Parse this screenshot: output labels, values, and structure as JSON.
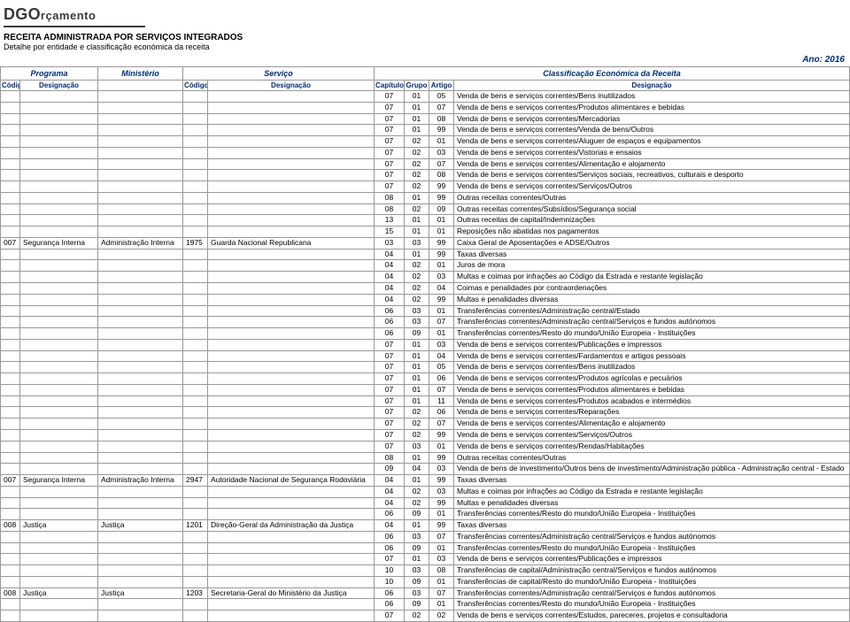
{
  "logo": {
    "prefix": "DGO",
    "suffix": "rçamento"
  },
  "header": {
    "title": "RECEITA ADMINISTRADA POR SERVIÇOS INTEGRADOS",
    "subtitle": "Detalhe por entidade e classificação económica da receita",
    "year_label": "Ano: 2016"
  },
  "group_headers": {
    "programa": "Programa",
    "ministerio": "Ministério",
    "servico": "Serviço",
    "classificacao": "Classificação Económica da Receita"
  },
  "col_headers": {
    "codigo": "Código",
    "desg": "Designação",
    "capitulo": "Capítulo",
    "grupo": "Grupo",
    "artigo": "Artigo"
  },
  "rows": [
    {
      "pc": "",
      "pd": "",
      "md": "",
      "sc": "",
      "sd": "",
      "cap": "07",
      "grp": "01",
      "art": "05",
      "d": "Venda de bens e serviços correntes/Bens inutilizados"
    },
    {
      "pc": "",
      "pd": "",
      "md": "",
      "sc": "",
      "sd": "",
      "cap": "07",
      "grp": "01",
      "art": "07",
      "d": "Venda de bens e serviços correntes/Produtos alimentares e bebidas"
    },
    {
      "pc": "",
      "pd": "",
      "md": "",
      "sc": "",
      "sd": "",
      "cap": "07",
      "grp": "01",
      "art": "08",
      "d": "Venda de bens e serviços correntes/Mercadorias"
    },
    {
      "pc": "",
      "pd": "",
      "md": "",
      "sc": "",
      "sd": "",
      "cap": "07",
      "grp": "01",
      "art": "99",
      "d": "Venda de bens e serviços correntes/Venda de bens/Outros"
    },
    {
      "pc": "",
      "pd": "",
      "md": "",
      "sc": "",
      "sd": "",
      "cap": "07",
      "grp": "02",
      "art": "01",
      "d": "Venda de bens e serviços correntes/Aluguer de espaços e equipamentos"
    },
    {
      "pc": "",
      "pd": "",
      "md": "",
      "sc": "",
      "sd": "",
      "cap": "07",
      "grp": "02",
      "art": "03",
      "d": "Venda de bens e serviços correntes/Vistorias e ensaios"
    },
    {
      "pc": "",
      "pd": "",
      "md": "",
      "sc": "",
      "sd": "",
      "cap": "07",
      "grp": "02",
      "art": "07",
      "d": "Venda de bens e serviços correntes/Alimentação e alojamento"
    },
    {
      "pc": "",
      "pd": "",
      "md": "",
      "sc": "",
      "sd": "",
      "cap": "07",
      "grp": "02",
      "art": "08",
      "d": "Venda de bens e serviços correntes/Serviços sociais, recreativos, culturais e desporto"
    },
    {
      "pc": "",
      "pd": "",
      "md": "",
      "sc": "",
      "sd": "",
      "cap": "07",
      "grp": "02",
      "art": "99",
      "d": "Venda de bens e serviços correntes/Serviços/Outros"
    },
    {
      "pc": "",
      "pd": "",
      "md": "",
      "sc": "",
      "sd": "",
      "cap": "08",
      "grp": "01",
      "art": "99",
      "d": "Outras receitas correntes/Outras"
    },
    {
      "pc": "",
      "pd": "",
      "md": "",
      "sc": "",
      "sd": "",
      "cap": "08",
      "grp": "02",
      "art": "09",
      "d": "Outras receitas correntes/Subsídios/Segurança social"
    },
    {
      "pc": "",
      "pd": "",
      "md": "",
      "sc": "",
      "sd": "",
      "cap": "13",
      "grp": "01",
      "art": "01",
      "d": "Outras receitas de capital/Indemnizações"
    },
    {
      "pc": "",
      "pd": "",
      "md": "",
      "sc": "",
      "sd": "",
      "cap": "15",
      "grp": "01",
      "art": "01",
      "d": "Reposições não abatidas nos pagamentos"
    },
    {
      "pc": "007",
      "pd": "Segurança Interna",
      "md": "Administração Interna",
      "sc": "1975",
      "sd": "Guarda Nacional Republicana",
      "cap": "03",
      "grp": "03",
      "art": "99",
      "d": "Caixa Geral de Aposentações e ADSE/Outros"
    },
    {
      "pc": "",
      "pd": "",
      "md": "",
      "sc": "",
      "sd": "",
      "cap": "04",
      "grp": "01",
      "art": "99",
      "d": "Taxas diversas"
    },
    {
      "pc": "",
      "pd": "",
      "md": "",
      "sc": "",
      "sd": "",
      "cap": "04",
      "grp": "02",
      "art": "01",
      "d": "Juros de mora"
    },
    {
      "pc": "",
      "pd": "",
      "md": "",
      "sc": "",
      "sd": "",
      "cap": "04",
      "grp": "02",
      "art": "03",
      "d": "Multas e coimas por infrações ao Código da Estrada e restante legislação"
    },
    {
      "pc": "",
      "pd": "",
      "md": "",
      "sc": "",
      "sd": "",
      "cap": "04",
      "grp": "02",
      "art": "04",
      "d": "Coimas e penalidades por contraordenações"
    },
    {
      "pc": "",
      "pd": "",
      "md": "",
      "sc": "",
      "sd": "",
      "cap": "04",
      "grp": "02",
      "art": "99",
      "d": "Multas e penalidades diversas"
    },
    {
      "pc": "",
      "pd": "",
      "md": "",
      "sc": "",
      "sd": "",
      "cap": "06",
      "grp": "03",
      "art": "01",
      "d": "Transferências correntes/Administração central/Estado"
    },
    {
      "pc": "",
      "pd": "",
      "md": "",
      "sc": "",
      "sd": "",
      "cap": "06",
      "grp": "03",
      "art": "07",
      "d": "Transferências correntes/Administração central/Serviços e fundos autónomos"
    },
    {
      "pc": "",
      "pd": "",
      "md": "",
      "sc": "",
      "sd": "",
      "cap": "06",
      "grp": "09",
      "art": "01",
      "d": "Transferências correntes/Resto do mundo/União Europeia - Instituições"
    },
    {
      "pc": "",
      "pd": "",
      "md": "",
      "sc": "",
      "sd": "",
      "cap": "07",
      "grp": "01",
      "art": "03",
      "d": "Venda de bens e serviços correntes/Publicações e impressos"
    },
    {
      "pc": "",
      "pd": "",
      "md": "",
      "sc": "",
      "sd": "",
      "cap": "07",
      "grp": "01",
      "art": "04",
      "d": "Venda de bens e serviços correntes/Fardamentos e artigos pessoais"
    },
    {
      "pc": "",
      "pd": "",
      "md": "",
      "sc": "",
      "sd": "",
      "cap": "07",
      "grp": "01",
      "art": "05",
      "d": "Venda de bens e serviços correntes/Bens inutilizados"
    },
    {
      "pc": "",
      "pd": "",
      "md": "",
      "sc": "",
      "sd": "",
      "cap": "07",
      "grp": "01",
      "art": "06",
      "d": "Venda de bens e serviços correntes/Produtos agrícolas e pecuários"
    },
    {
      "pc": "",
      "pd": "",
      "md": "",
      "sc": "",
      "sd": "",
      "cap": "07",
      "grp": "01",
      "art": "07",
      "d": "Venda de bens e serviços correntes/Produtos alimentares e bebidas"
    },
    {
      "pc": "",
      "pd": "",
      "md": "",
      "sc": "",
      "sd": "",
      "cap": "07",
      "grp": "01",
      "art": "11",
      "d": "Venda de bens e serviços correntes/Produtos acabados e intermédios"
    },
    {
      "pc": "",
      "pd": "",
      "md": "",
      "sc": "",
      "sd": "",
      "cap": "07",
      "grp": "02",
      "art": "06",
      "d": "Venda de bens e serviços correntes/Reparações"
    },
    {
      "pc": "",
      "pd": "",
      "md": "",
      "sc": "",
      "sd": "",
      "cap": "07",
      "grp": "02",
      "art": "07",
      "d": "Venda de bens e serviços correntes/Alimentação e alojamento"
    },
    {
      "pc": "",
      "pd": "",
      "md": "",
      "sc": "",
      "sd": "",
      "cap": "07",
      "grp": "02",
      "art": "99",
      "d": "Venda de bens e serviços correntes/Serviços/Outros"
    },
    {
      "pc": "",
      "pd": "",
      "md": "",
      "sc": "",
      "sd": "",
      "cap": "07",
      "grp": "03",
      "art": "01",
      "d": "Venda de bens e serviços correntes/Rendas/Habitações"
    },
    {
      "pc": "",
      "pd": "",
      "md": "",
      "sc": "",
      "sd": "",
      "cap": "08",
      "grp": "01",
      "art": "99",
      "d": "Outras receitas correntes/Outras"
    },
    {
      "pc": "",
      "pd": "",
      "md": "",
      "sc": "",
      "sd": "",
      "cap": "09",
      "grp": "04",
      "art": "03",
      "d": "Venda de bens de investimento/Outros bens de investimento/Administração pública - Administração central - Estado"
    },
    {
      "pc": "007",
      "pd": "Segurança Interna",
      "md": "Administração Interna",
      "sc": "2947",
      "sd": "Autoridade Nacional de Segurança Rodoviária",
      "cap": "04",
      "grp": "01",
      "art": "99",
      "d": "Taxas diversas"
    },
    {
      "pc": "",
      "pd": "",
      "md": "",
      "sc": "",
      "sd": "",
      "cap": "04",
      "grp": "02",
      "art": "03",
      "d": "Multas e coimas por infrações ao Código da Estrada e restante legislação"
    },
    {
      "pc": "",
      "pd": "",
      "md": "",
      "sc": "",
      "sd": "",
      "cap": "04",
      "grp": "02",
      "art": "99",
      "d": "Multas e penalidades diversas"
    },
    {
      "pc": "",
      "pd": "",
      "md": "",
      "sc": "",
      "sd": "",
      "cap": "06",
      "grp": "09",
      "art": "01",
      "d": "Transferências correntes/Resto do mundo/União Europeia - Instituições"
    },
    {
      "pc": "008",
      "pd": "Justiça",
      "md": "Justiça",
      "sc": "1201",
      "sd": "Direção-Geral da Administração da Justiça",
      "cap": "04",
      "grp": "01",
      "art": "99",
      "d": "Taxas diversas"
    },
    {
      "pc": "",
      "pd": "",
      "md": "",
      "sc": "",
      "sd": "",
      "cap": "06",
      "grp": "03",
      "art": "07",
      "d": "Transferências correntes/Administração central/Serviços e fundos autónomos"
    },
    {
      "pc": "",
      "pd": "",
      "md": "",
      "sc": "",
      "sd": "",
      "cap": "06",
      "grp": "09",
      "art": "01",
      "d": "Transferências correntes/Resto do mundo/União Europeia - Instituições"
    },
    {
      "pc": "",
      "pd": "",
      "md": "",
      "sc": "",
      "sd": "",
      "cap": "07",
      "grp": "01",
      "art": "03",
      "d": "Venda de bens e serviços correntes/Publicações e impressos"
    },
    {
      "pc": "",
      "pd": "",
      "md": "",
      "sc": "",
      "sd": "",
      "cap": "10",
      "grp": "03",
      "art": "08",
      "d": "Transferências de capital/Administração central/Serviços e fundos autónomos"
    },
    {
      "pc": "",
      "pd": "",
      "md": "",
      "sc": "",
      "sd": "",
      "cap": "10",
      "grp": "09",
      "art": "01",
      "d": "Transferências de capital/Resto do mundo/União Europeia - Instituições"
    },
    {
      "pc": "008",
      "pd": "Justiça",
      "md": "Justiça",
      "sc": "1203",
      "sd": "Secretaria-Geral do Ministério da Justiça",
      "cap": "06",
      "grp": "03",
      "art": "07",
      "d": "Transferências correntes/Administração central/Serviços e fundos autónomos"
    },
    {
      "pc": "",
      "pd": "",
      "md": "",
      "sc": "",
      "sd": "",
      "cap": "06",
      "grp": "09",
      "art": "01",
      "d": "Transferências correntes/Resto do mundo/União Europeia - Instituições"
    },
    {
      "pc": "",
      "pd": "",
      "md": "",
      "sc": "",
      "sd": "",
      "cap": "07",
      "grp": "02",
      "art": "02",
      "d": "Venda de bens e serviços correntes/Estudos, pareceres, projetos e consultadoria"
    }
  ]
}
